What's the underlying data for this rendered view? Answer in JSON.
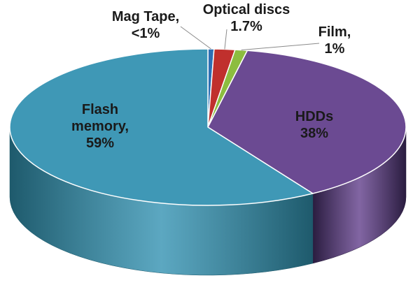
{
  "chart_data": {
    "type": "pie",
    "style": "3d",
    "title": "",
    "slices": [
      {
        "name": "Mag Tape",
        "value": 0.5,
        "label_lines": [
          "Mag Tape,",
          "<1%"
        ],
        "color": "#2d6fb4",
        "side_color": "#1b3f66"
      },
      {
        "name": "Optical discs",
        "value": 1.7,
        "label_lines": [
          "Optical discs",
          "1.7%"
        ],
        "color": "#c0302d",
        "side_color": "#6b1a18"
      },
      {
        "name": "Film",
        "value": 1,
        "label_lines": [
          "Film,",
          "1%"
        ],
        "color": "#8cbd3f",
        "side_color": "#4e6b22"
      },
      {
        "name": "HDDs",
        "value": 38,
        "label_lines": [
          "HDDs",
          "38%"
        ],
        "color": "#6b4a92",
        "side_color": "#2a1c3f"
      },
      {
        "name": "Flash memory",
        "value": 59,
        "label_lines": [
          "Flash",
          "memory,",
          "59%"
        ],
        "color": "#3f98b6",
        "side_color": "#1e5a6c"
      }
    ],
    "legend": "none",
    "labels": "data labels with leader lines for small slices"
  }
}
